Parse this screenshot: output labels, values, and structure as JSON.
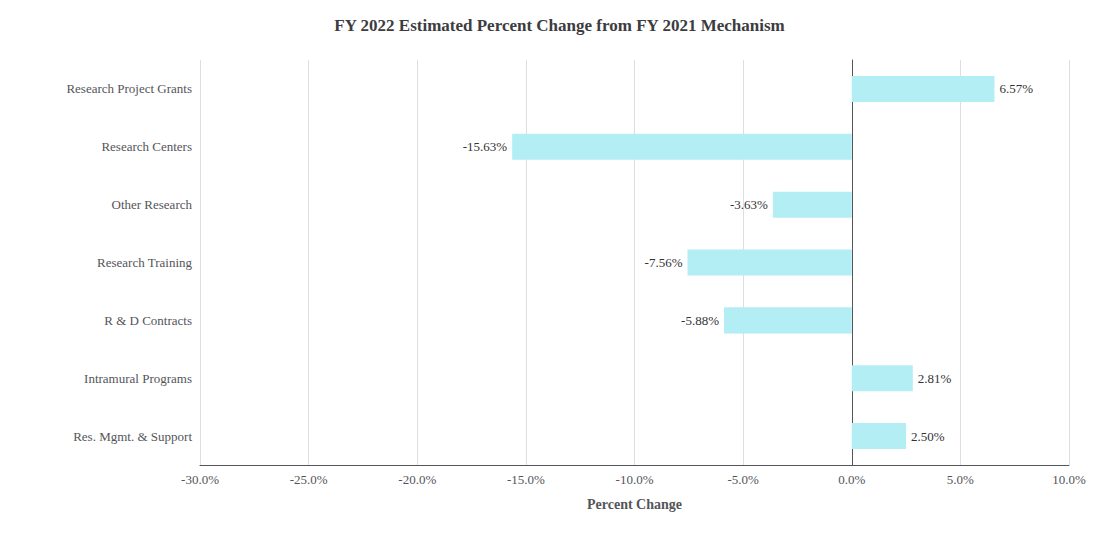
{
  "chart_data": {
    "type": "bar",
    "orientation": "horizontal",
    "title": "FY 2022 Estimated Percent Change from FY 2021 Mechanism",
    "xlabel": "Percent Change",
    "categories": [
      "Research Project Grants",
      "Research Centers",
      "Other Research",
      "Research Training",
      "R & D Contracts",
      "Intramural Programs",
      "Res. Mgmt. & Support"
    ],
    "values": [
      6.57,
      -15.63,
      -3.63,
      -7.56,
      -5.88,
      2.81,
      2.5
    ],
    "value_labels": [
      "6.57%",
      "-15.63%",
      "-3.63%",
      "-7.56%",
      "-5.88%",
      "2.81%",
      "2.50%"
    ],
    "data_labels": true,
    "color": "#b2eef4",
    "xlim": [
      -30.0,
      10.0
    ],
    "xticks": [
      {
        "value": -30.0,
        "label": "-30.0%"
      },
      {
        "value": -25.0,
        "label": "-25.0%"
      },
      {
        "value": -20.0,
        "label": "-20.0%"
      },
      {
        "value": -15.0,
        "label": "-15.0%"
      },
      {
        "value": -10.0,
        "label": "-10.0%"
      },
      {
        "value": -5.0,
        "label": "-5.0%"
      },
      {
        "value": 0.0,
        "label": "0.0%"
      },
      {
        "value": 5.0,
        "label": "5.0%"
      },
      {
        "value": 10.0,
        "label": "10.0%"
      }
    ],
    "grid": true
  }
}
